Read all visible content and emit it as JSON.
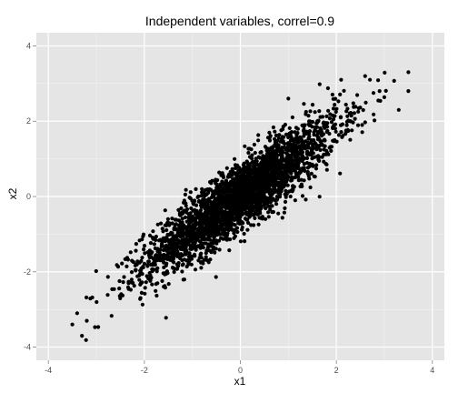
{
  "chart_data": {
    "type": "scatter",
    "title": "Independent variables, correl=0.9",
    "xlabel": "x1",
    "ylabel": "x2",
    "xlim": [
      -4.25,
      4.25
    ],
    "ylim": [
      -4.35,
      4.35
    ],
    "x_ticks": [
      -4,
      -2,
      0,
      2,
      4
    ],
    "y_ticks": [
      -4,
      -2,
      0,
      2,
      4
    ],
    "x_tick_labels": [
      "-4",
      "-2",
      "0",
      "2",
      "4"
    ],
    "y_tick_labels": [
      "-4",
      "-2",
      "0",
      "2",
      "4"
    ],
    "grid": true,
    "legend": "none",
    "correlation": 0.9,
    "n_points": 3000,
    "x_mean": 0,
    "x_sd": 1,
    "extreme_points": [
      {
        "x": -3.5,
        "y": -3.4
      },
      {
        "x": -3.3,
        "y": -3.7
      },
      {
        "x": -3.2,
        "y": -3.3
      },
      {
        "x": -3.4,
        "y": -3.1
      },
      {
        "x": 2.6,
        "y": 3.2
      },
      {
        "x": 2.7,
        "y": 3.1
      },
      {
        "x": 3.5,
        "y": 3.3
      },
      {
        "x": 3.5,
        "y": 2.8
      },
      {
        "x": 3.3,
        "y": 2.3
      },
      {
        "x": 2.1,
        "y": 3.1
      },
      {
        "x": 2.9,
        "y": 2.8
      },
      {
        "x": 1.0,
        "y": 2.6
      }
    ],
    "colors": {
      "panel_background": "#e5e5e5",
      "grid_major": "#ffffff",
      "grid_minor": "#f2f2f2",
      "point": "#000000",
      "tick_label": "#4d4d4d"
    }
  }
}
